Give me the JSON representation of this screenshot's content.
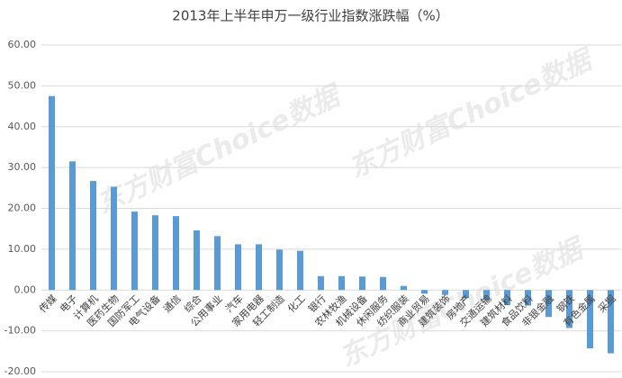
{
  "chart_data": {
    "type": "bar",
    "title": "2013年上半年申万一级行业指数涨跌幅（%）",
    "watermark": "东方财富Choice数据",
    "categories": [
      "传媒",
      "电子",
      "计算机",
      "医药生物",
      "国防军工",
      "电气设备",
      "通信",
      "综合",
      "公用事业",
      "汽车",
      "家用电器",
      "轻工制造",
      "化工",
      "银行",
      "农林牧渔",
      "机械设备",
      "休闲服务",
      "纺织服装",
      "商业贸易",
      "建筑装饰",
      "房地产",
      "交通运输",
      "建筑材料",
      "食品饮料",
      "非银金融",
      "钢铁",
      "有色金属",
      "采掘"
    ],
    "values": [
      47.5,
      31.5,
      26.7,
      25.3,
      19.2,
      18.3,
      18.1,
      14.6,
      13.2,
      11.2,
      11.2,
      9.9,
      9.6,
      3.4,
      3.4,
      3.3,
      3.2,
      1.0,
      -0.9,
      -1.2,
      -2.0,
      -2.4,
      -3.7,
      -3.8,
      -6.6,
      -9.3,
      -14.3,
      -15.5
    ],
    "color": "#5b9bd5",
    "ylim": [
      -20,
      60
    ],
    "yticks": [
      {
        "value": -20,
        "label": "-20.00"
      },
      {
        "value": -10,
        "label": "-10.00"
      },
      {
        "value": 0,
        "label": "0.00"
      },
      {
        "value": 10,
        "label": "10.00"
      },
      {
        "value": 20,
        "label": "20.00"
      },
      {
        "value": 30,
        "label": "30.00"
      },
      {
        "value": 40,
        "label": "40.00"
      },
      {
        "value": 50,
        "label": "50.00"
      },
      {
        "value": 60,
        "label": "60.00"
      }
    ],
    "grid": true
  }
}
